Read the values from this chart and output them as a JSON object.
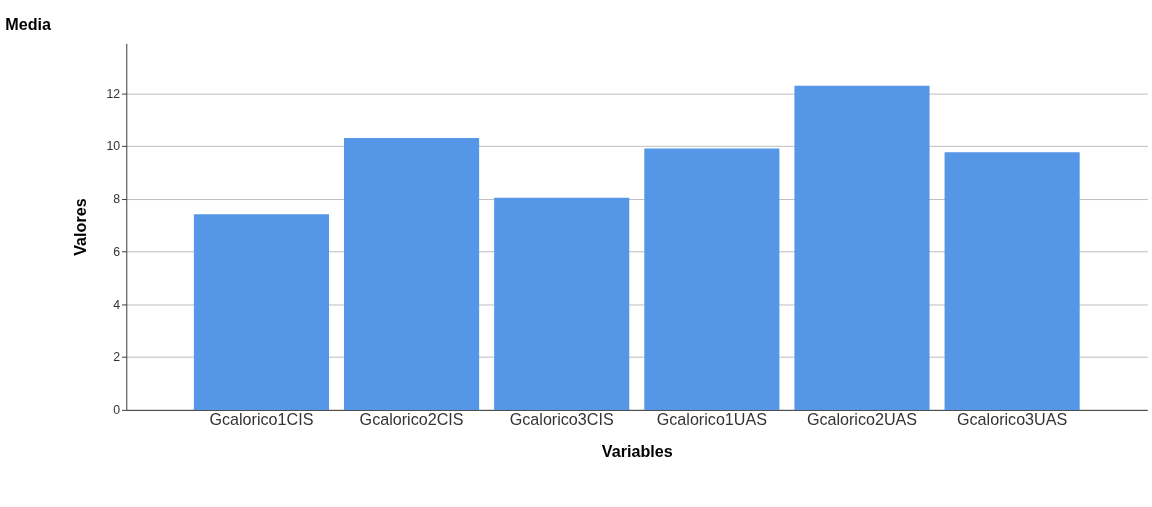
{
  "chart_data": {
    "type": "bar",
    "title": "Media",
    "xlabel": "Variables",
    "ylabel": "Valores",
    "categories": [
      "Gcalorico1CIS",
      "Gcalorico2CIS",
      "Gcalorico3CIS",
      "Gcalorico1UAS",
      "Gcalorico2UAS",
      "Gcalorico3UAS"
    ],
    "values": [
      7.42,
      10.31,
      8.04,
      9.91,
      12.29,
      9.77
    ],
    "color": "#5596e6",
    "ylim": [
      0,
      13.9
    ],
    "yticks": [
      0,
      2,
      4,
      6,
      8,
      10,
      12
    ],
    "grid": "y"
  }
}
